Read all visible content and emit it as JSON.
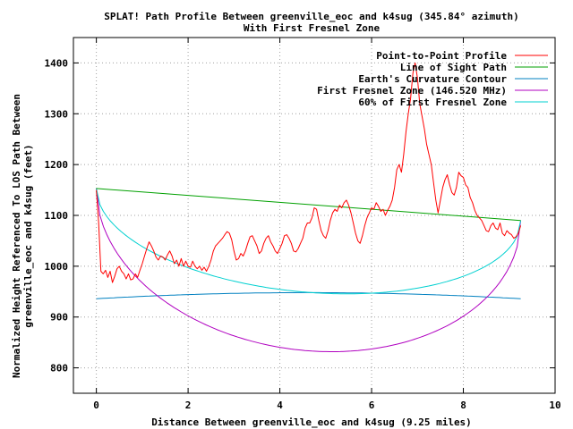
{
  "chart_data": {
    "type": "line",
    "title": "SPLAT! Path Profile Between greenville_eoc and k4sug (345.84° azimuth)",
    "subtitle": "With First Fresnel Zone",
    "xlabel": "Distance Between greenville_eoc and k4sug (9.25 miles)",
    "ylabel_lines": [
      "Normalized Height Referenced To LOS Path Between",
      "greenville_eoc and k4sug (feet)"
    ],
    "xlim": [
      -0.5,
      10
    ],
    "ylim": [
      750,
      1450
    ],
    "x_ticks": [
      0,
      2,
      4,
      6,
      8,
      10
    ],
    "y_ticks": [
      800,
      900,
      1000,
      1100,
      1200,
      1300,
      1400
    ],
    "x_tick_labels": [
      "0",
      "2",
      "4",
      "6",
      "8",
      "10"
    ],
    "y_tick_labels": [
      "800",
      "900",
      "1000",
      "1100",
      "1200",
      "1300",
      "1400"
    ],
    "grid": true,
    "legend_position": "top-right",
    "series": [
      {
        "name": "Point-to-Point Profile",
        "color": "#ff0000",
        "points": [
          [
            0,
            1150
          ],
          [
            0.05,
            1085
          ],
          [
            0.1,
            990
          ],
          [
            0.15,
            985
          ],
          [
            0.2,
            992
          ],
          [
            0.25,
            978
          ],
          [
            0.3,
            990
          ],
          [
            0.35,
            968
          ],
          [
            0.4,
            980
          ],
          [
            0.45,
            995
          ],
          [
            0.5,
            1000
          ],
          [
            0.55,
            990
          ],
          [
            0.6,
            985
          ],
          [
            0.65,
            975
          ],
          [
            0.7,
            985
          ],
          [
            0.75,
            973
          ],
          [
            0.8,
            975
          ],
          [
            0.85,
            985
          ],
          [
            0.9,
            978
          ],
          [
            0.95,
            992
          ],
          [
            1.0,
            1005
          ],
          [
            1.05,
            1020
          ],
          [
            1.1,
            1035
          ],
          [
            1.15,
            1048
          ],
          [
            1.2,
            1040
          ],
          [
            1.25,
            1030
          ],
          [
            1.3,
            1018
          ],
          [
            1.35,
            1012
          ],
          [
            1.4,
            1020
          ],
          [
            1.45,
            1018
          ],
          [
            1.5,
            1012
          ],
          [
            1.55,
            1022
          ],
          [
            1.6,
            1030
          ],
          [
            1.65,
            1020
          ],
          [
            1.7,
            1005
          ],
          [
            1.75,
            1012
          ],
          [
            1.8,
            1000
          ],
          [
            1.85,
            1015
          ],
          [
            1.9,
            1000
          ],
          [
            1.95,
            1010
          ],
          [
            2.0,
            1000
          ],
          [
            2.05,
            998
          ],
          [
            2.1,
            1010
          ],
          [
            2.15,
            1000
          ],
          [
            2.2,
            995
          ],
          [
            2.25,
            1000
          ],
          [
            2.3,
            992
          ],
          [
            2.35,
            998
          ],
          [
            2.4,
            990
          ],
          [
            2.45,
            1000
          ],
          [
            2.5,
            1012
          ],
          [
            2.55,
            1030
          ],
          [
            2.6,
            1040
          ],
          [
            2.65,
            1045
          ],
          [
            2.7,
            1050
          ],
          [
            2.75,
            1055
          ],
          [
            2.8,
            1062
          ],
          [
            2.85,
            1068
          ],
          [
            2.9,
            1065
          ],
          [
            2.95,
            1052
          ],
          [
            3.0,
            1030
          ],
          [
            3.05,
            1012
          ],
          [
            3.1,
            1015
          ],
          [
            3.15,
            1025
          ],
          [
            3.2,
            1020
          ],
          [
            3.25,
            1030
          ],
          [
            3.3,
            1045
          ],
          [
            3.35,
            1058
          ],
          [
            3.4,
            1060
          ],
          [
            3.45,
            1050
          ],
          [
            3.5,
            1040
          ],
          [
            3.55,
            1025
          ],
          [
            3.6,
            1030
          ],
          [
            3.65,
            1045
          ],
          [
            3.7,
            1055
          ],
          [
            3.75,
            1060
          ],
          [
            3.8,
            1048
          ],
          [
            3.85,
            1040
          ],
          [
            3.9,
            1030
          ],
          [
            3.95,
            1025
          ],
          [
            4.0,
            1035
          ],
          [
            4.05,
            1045
          ],
          [
            4.1,
            1060
          ],
          [
            4.15,
            1062
          ],
          [
            4.2,
            1055
          ],
          [
            4.25,
            1045
          ],
          [
            4.3,
            1030
          ],
          [
            4.35,
            1028
          ],
          [
            4.4,
            1035
          ],
          [
            4.45,
            1045
          ],
          [
            4.5,
            1055
          ],
          [
            4.55,
            1075
          ],
          [
            4.6,
            1085
          ],
          [
            4.65,
            1085
          ],
          [
            4.7,
            1095
          ],
          [
            4.75,
            1115
          ],
          [
            4.8,
            1112
          ],
          [
            4.85,
            1090
          ],
          [
            4.9,
            1070
          ],
          [
            4.95,
            1060
          ],
          [
            5.0,
            1055
          ],
          [
            5.05,
            1070
          ],
          [
            5.1,
            1090
          ],
          [
            5.15,
            1105
          ],
          [
            5.2,
            1112
          ],
          [
            5.25,
            1108
          ],
          [
            5.3,
            1120
          ],
          [
            5.35,
            1115
          ],
          [
            5.4,
            1125
          ],
          [
            5.45,
            1130
          ],
          [
            5.5,
            1120
          ],
          [
            5.55,
            1105
          ],
          [
            5.6,
            1085
          ],
          [
            5.65,
            1065
          ],
          [
            5.7,
            1050
          ],
          [
            5.75,
            1045
          ],
          [
            5.8,
            1060
          ],
          [
            5.85,
            1080
          ],
          [
            5.9,
            1095
          ],
          [
            5.95,
            1105
          ],
          [
            6.0,
            1115
          ],
          [
            6.05,
            1112
          ],
          [
            6.1,
            1125
          ],
          [
            6.15,
            1118
          ],
          [
            6.2,
            1108
          ],
          [
            6.25,
            1112
          ],
          [
            6.3,
            1100
          ],
          [
            6.35,
            1110
          ],
          [
            6.4,
            1118
          ],
          [
            6.45,
            1130
          ],
          [
            6.5,
            1155
          ],
          [
            6.55,
            1190
          ],
          [
            6.6,
            1200
          ],
          [
            6.65,
            1185
          ],
          [
            6.7,
            1220
          ],
          [
            6.75,
            1265
          ],
          [
            6.8,
            1300
          ],
          [
            6.85,
            1330
          ],
          [
            6.9,
            1380
          ],
          [
            6.95,
            1400
          ],
          [
            7.0,
            1370
          ],
          [
            7.05,
            1320
          ],
          [
            7.1,
            1295
          ],
          [
            7.15,
            1270
          ],
          [
            7.2,
            1240
          ],
          [
            7.25,
            1220
          ],
          [
            7.3,
            1200
          ],
          [
            7.35,
            1165
          ],
          [
            7.4,
            1130
          ],
          [
            7.45,
            1105
          ],
          [
            7.5,
            1130
          ],
          [
            7.55,
            1155
          ],
          [
            7.6,
            1170
          ],
          [
            7.65,
            1180
          ],
          [
            7.7,
            1160
          ],
          [
            7.75,
            1145
          ],
          [
            7.8,
            1140
          ],
          [
            7.85,
            1155
          ],
          [
            7.9,
            1185
          ],
          [
            7.95,
            1178
          ],
          [
            8.0,
            1175
          ],
          [
            8.05,
            1160
          ],
          [
            8.1,
            1155
          ],
          [
            8.15,
            1135
          ],
          [
            8.2,
            1125
          ],
          [
            8.25,
            1110
          ],
          [
            8.3,
            1100
          ],
          [
            8.35,
            1095
          ],
          [
            8.4,
            1090
          ],
          [
            8.45,
            1080
          ],
          [
            8.5,
            1070
          ],
          [
            8.55,
            1068
          ],
          [
            8.6,
            1080
          ],
          [
            8.65,
            1085
          ],
          [
            8.7,
            1075
          ],
          [
            8.75,
            1072
          ],
          [
            8.8,
            1085
          ],
          [
            8.85,
            1065
          ],
          [
            8.9,
            1060
          ],
          [
            8.95,
            1070
          ],
          [
            9.0,
            1065
          ],
          [
            9.05,
            1062
          ],
          [
            9.1,
            1055
          ],
          [
            9.15,
            1058
          ],
          [
            9.2,
            1065
          ],
          [
            9.25,
            1080
          ]
        ]
      },
      {
        "name": "Line of Sight Path",
        "color": "#00a000",
        "points": [
          [
            0,
            1153
          ],
          [
            9.25,
            1090
          ]
        ]
      },
      {
        "name": "Earth's Curvature Contour",
        "color": "#0080c0",
        "curve": {
          "kind": "arc",
          "x0": 0,
          "x1": 9.25,
          "y0": 936,
          "y1": 936,
          "sag": 12,
          "direction": "up"
        }
      },
      {
        "name": "First Fresnel Zone (146.520 MHz)",
        "color": "#b000c0",
        "curve": {
          "kind": "fresnel",
          "x0": 0,
          "x1": 9.25,
          "y0": 1153,
          "y1": 1090,
          "depth": 288,
          "direction": "down"
        }
      },
      {
        "name": "60% of First Fresnel Zone",
        "color": "#00d0d0",
        "curve": {
          "kind": "fresnel",
          "x0": 0,
          "x1": 9.25,
          "y0": 1153,
          "y1": 1090,
          "depth": 173,
          "direction": "down"
        }
      }
    ]
  }
}
